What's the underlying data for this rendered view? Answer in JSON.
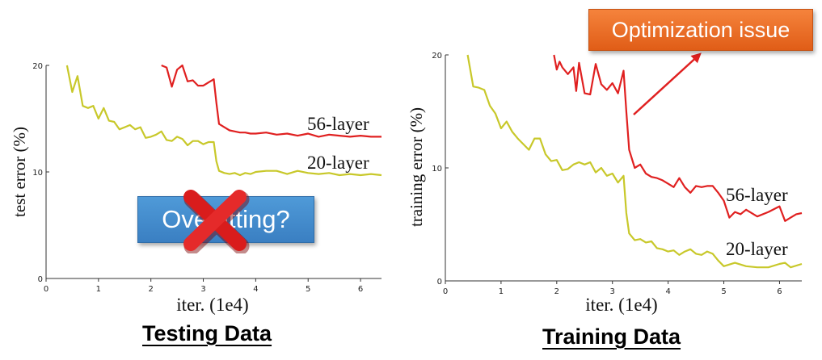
{
  "chart_data": [
    {
      "type": "line",
      "xlabel": "iter. (1e4)",
      "ylabel": "test error (%)",
      "xlim": [
        0,
        6.4
      ],
      "ylim": [
        0,
        20
      ],
      "xticks": [
        0,
        1,
        2,
        3,
        4,
        5,
        6
      ],
      "yticks": [
        0,
        10,
        20
      ],
      "caption": "Testing Data",
      "series": [
        {
          "name": "20-layer",
          "color": "#c8c82a",
          "x": [
            0.4,
            0.5,
            0.6,
            0.7,
            0.8,
            0.9,
            1.0,
            1.1,
            1.2,
            1.3,
            1.4,
            1.5,
            1.6,
            1.7,
            1.8,
            1.9,
            2.0,
            2.1,
            2.2,
            2.3,
            2.4,
            2.5,
            2.6,
            2.7,
            2.8,
            2.9,
            3.0,
            3.1,
            3.2,
            3.25,
            3.3,
            3.4,
            3.5,
            3.6,
            3.7,
            3.8,
            3.9,
            4.0,
            4.2,
            4.4,
            4.6,
            4.8,
            5.0,
            5.2,
            5.4,
            5.6,
            5.8,
            6.0,
            6.2,
            6.4
          ],
          "y": [
            20,
            17.5,
            19,
            16.2,
            16,
            16.2,
            15,
            16,
            14.8,
            14.7,
            14,
            14.2,
            14.4,
            14,
            14.2,
            13.2,
            13.3,
            13.5,
            13.8,
            13,
            12.9,
            13.3,
            13.1,
            12.5,
            12.9,
            12.9,
            12.6,
            12.8,
            12.8,
            11,
            10.1,
            9.9,
            9.8,
            9.9,
            9.7,
            9.9,
            9.8,
            10,
            10.1,
            10.1,
            9.8,
            10.1,
            9.9,
            9.8,
            9.9,
            9.7,
            9.8,
            9.7,
            9.8,
            9.7
          ]
        },
        {
          "name": "56-layer",
          "color": "#e02020",
          "x": [
            2.2,
            2.3,
            2.4,
            2.5,
            2.6,
            2.7,
            2.8,
            2.9,
            3.0,
            3.1,
            3.2,
            3.25,
            3.3,
            3.4,
            3.5,
            3.6,
            3.7,
            3.8,
            3.9,
            4.0,
            4.2,
            4.4,
            4.6,
            4.8,
            5.0,
            5.2,
            5.4,
            5.6,
            5.8,
            6.0,
            6.2,
            6.4
          ],
          "y": [
            20,
            19.8,
            18,
            19.6,
            20,
            18.5,
            18.6,
            18.1,
            18.1,
            18.4,
            18.7,
            16.5,
            14.5,
            14.2,
            13.9,
            13.8,
            13.7,
            13.7,
            13.6,
            13.6,
            13.7,
            13.5,
            13.6,
            13.4,
            13.6,
            13.3,
            13.5,
            13.4,
            13.3,
            13.4,
            13.3,
            13.3
          ]
        }
      ]
    },
    {
      "type": "line",
      "xlabel": "iter. (1e4)",
      "ylabel": "training error (%)",
      "xlim": [
        0,
        6.4
      ],
      "ylim": [
        0,
        20
      ],
      "xticks": [
        0,
        1,
        2,
        3,
        4,
        5,
        6
      ],
      "yticks": [
        0,
        10,
        20
      ],
      "caption": "Training Data",
      "series": [
        {
          "name": "20-layer",
          "color": "#c8c82a",
          "x": [
            0.4,
            0.5,
            0.6,
            0.7,
            0.8,
            0.9,
            1.0,
            1.1,
            1.2,
            1.3,
            1.4,
            1.5,
            1.6,
            1.7,
            1.8,
            1.9,
            2.0,
            2.1,
            2.2,
            2.3,
            2.4,
            2.5,
            2.6,
            2.7,
            2.8,
            2.9,
            3.0,
            3.1,
            3.2,
            3.25,
            3.3,
            3.4,
            3.5,
            3.6,
            3.7,
            3.8,
            3.9,
            4.0,
            4.1,
            4.2,
            4.3,
            4.4,
            4.5,
            4.6,
            4.7,
            4.8,
            4.9,
            5.0,
            5.2,
            5.4,
            5.6,
            5.8,
            6.0,
            6.1,
            6.2,
            6.4
          ],
          "y": [
            20,
            17.2,
            17.1,
            16.9,
            15.5,
            14.8,
            13.5,
            14.1,
            13.2,
            12.6,
            12.1,
            11.6,
            12.6,
            12.6,
            11.2,
            10.6,
            10.7,
            9.8,
            9.9,
            10.3,
            10.5,
            10.3,
            10.5,
            9.6,
            10,
            9.3,
            9.5,
            8.7,
            9.3,
            6,
            4.2,
            3.6,
            3.7,
            3.4,
            3.5,
            2.9,
            2.8,
            2.6,
            2.7,
            2.3,
            2.6,
            2.8,
            2.4,
            2.3,
            2.6,
            2.4,
            1.8,
            1.3,
            1.6,
            1.3,
            1.2,
            1.2,
            1.5,
            1.6,
            1.2,
            1.5
          ]
        },
        {
          "name": "56-layer",
          "color": "#e02020",
          "x": [
            1.95,
            2.0,
            2.05,
            2.1,
            2.2,
            2.3,
            2.35,
            2.4,
            2.5,
            2.6,
            2.7,
            2.8,
            2.9,
            3.0,
            3.1,
            3.2,
            3.25,
            3.3,
            3.4,
            3.5,
            3.6,
            3.7,
            3.8,
            3.9,
            4.0,
            4.1,
            4.2,
            4.3,
            4.4,
            4.5,
            4.6,
            4.7,
            4.8,
            4.9,
            5.0,
            5.1,
            5.2,
            5.3,
            5.4,
            5.6,
            5.8,
            6.0,
            6.1,
            6.2,
            6.3,
            6.4
          ],
          "y": [
            20,
            18.7,
            19.4,
            18.9,
            18.3,
            18.9,
            16.8,
            19.3,
            16.6,
            16.5,
            19.2,
            17.4,
            16.9,
            17.5,
            16.6,
            18.6,
            15,
            11.6,
            10,
            10.3,
            9.5,
            9.2,
            9.1,
            8.9,
            8.6,
            8.3,
            9.1,
            8.3,
            7.8,
            8.4,
            8.3,
            8.4,
            8.4,
            7.8,
            7.1,
            5.6,
            6.1,
            5.9,
            6.3,
            5.7,
            6.1,
            6.6,
            5.3,
            5.6,
            5.9,
            6
          ]
        }
      ]
    }
  ],
  "annotations": {
    "overfitting": "Overfitting?",
    "optimization": "Optimization issue"
  }
}
